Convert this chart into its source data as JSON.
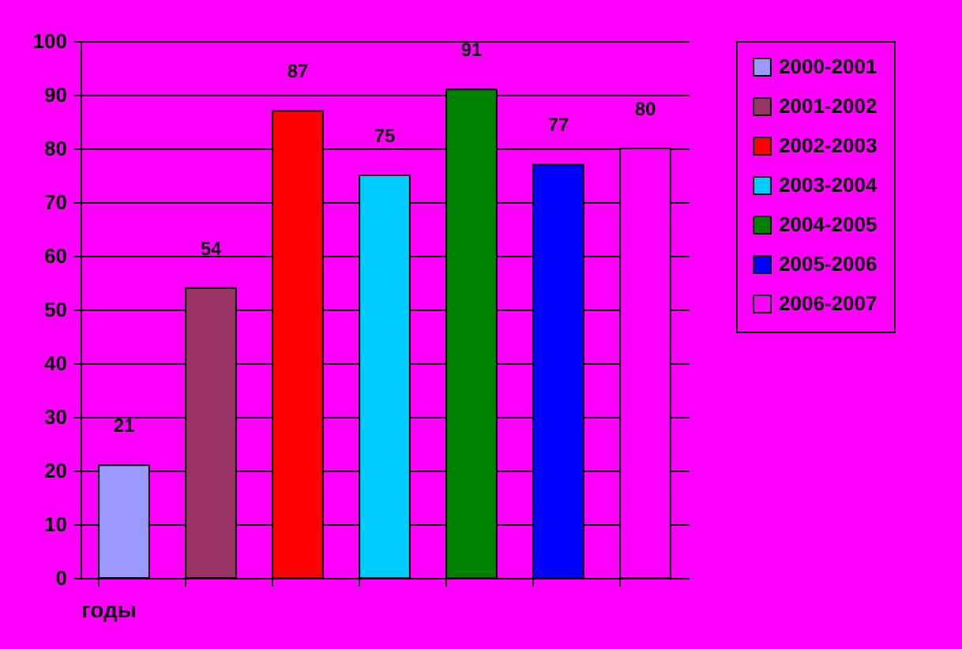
{
  "chart_data": {
    "type": "bar",
    "xlabel": "годы",
    "categories": [
      null,
      null,
      null,
      null,
      null,
      null,
      null
    ],
    "series": [
      {
        "name": "2000-2001",
        "color": "#9999ff",
        "values": [
          21,
          null,
          null,
          null,
          null,
          null,
          null
        ]
      },
      {
        "name": "2001-2002",
        "color": "#993366",
        "values": [
          null,
          54,
          null,
          null,
          null,
          null,
          null
        ]
      },
      {
        "name": "2002-2003",
        "color": "#ff0000",
        "values": [
          null,
          null,
          87,
          null,
          null,
          null,
          null
        ]
      },
      {
        "name": "2003-2004",
        "color": "#00ccff",
        "values": [
          null,
          null,
          null,
          75,
          null,
          null,
          null
        ]
      },
      {
        "name": "2004-2005",
        "color": "#008000",
        "values": [
          null,
          null,
          null,
          null,
          91,
          null,
          null
        ]
      },
      {
        "name": "2005-2006",
        "color": "#0000ff",
        "values": [
          null,
          null,
          null,
          null,
          null,
          77,
          null
        ]
      },
      {
        "name": "2006-2007",
        "color": "#ff00ff",
        "values": [
          null,
          null,
          null,
          null,
          null,
          null,
          80
        ]
      }
    ],
    "ylim": [
      0,
      100
    ],
    "yticks": [
      0,
      10,
      20,
      30,
      40,
      50,
      60,
      70,
      80,
      90,
      100
    ],
    "grid": "y",
    "legend": "right",
    "tick_labels": "y",
    "data_labels": true
  }
}
